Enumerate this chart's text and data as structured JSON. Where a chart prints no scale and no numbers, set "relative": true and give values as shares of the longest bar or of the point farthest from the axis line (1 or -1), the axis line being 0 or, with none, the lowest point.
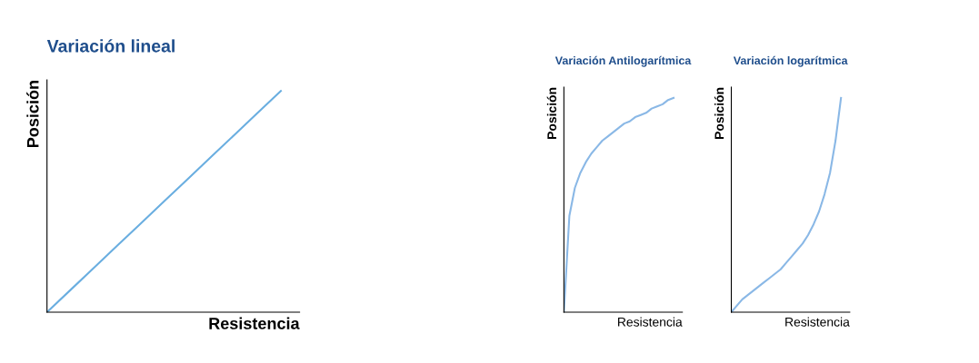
{
  "chart_data": [
    {
      "type": "line",
      "title": "Variación lineal",
      "xlabel": "Resistencia",
      "ylabel": "Posición",
      "relative": true,
      "categories": [
        null,
        null,
        null,
        null,
        null,
        null,
        null,
        null,
        null,
        null,
        null
      ],
      "series": [
        {
          "color": "#6aaee0",
          "values": [
            0,
            0.1,
            0.2,
            0.3,
            0.4,
            0.5,
            0.6,
            0.7,
            0.8,
            0.9,
            1
          ]
        }
      ]
    },
    {
      "type": "line",
      "title": "Variación Antilogarítmica",
      "xlabel": "Resistencia",
      "ylabel": "Posición",
      "relative": true,
      "categories": [
        null,
        null,
        null,
        null,
        null,
        null,
        null,
        null,
        null,
        null,
        null,
        null,
        null,
        null,
        null,
        null,
        null,
        null,
        null,
        null,
        null
      ],
      "series": [
        {
          "color": "#8ab8e6",
          "values": [
            0,
            0.45,
            0.58,
            0.65,
            0.7,
            0.74,
            0.77,
            0.8,
            0.82,
            0.84,
            0.86,
            0.88,
            0.89,
            0.91,
            0.92,
            0.93,
            0.95,
            0.96,
            0.97,
            0.99,
            1
          ]
        }
      ]
    },
    {
      "type": "line",
      "title": "Variación logarítmica",
      "xlabel": "Resistencia",
      "ylabel": "Posición",
      "relative": true,
      "categories": [
        null,
        null,
        null,
        null,
        null,
        null,
        null,
        null,
        null,
        null,
        null,
        null,
        null,
        null,
        null,
        null,
        null,
        null,
        null,
        null,
        null
      ],
      "series": [
        {
          "color": "#8ab8e6",
          "values": [
            0,
            0.03,
            0.06,
            0.08,
            0.1,
            0.12,
            0.14,
            0.16,
            0.18,
            0.2,
            0.23,
            0.26,
            0.29,
            0.32,
            0.36,
            0.41,
            0.47,
            0.55,
            0.65,
            0.8,
            1
          ]
        }
      ]
    }
  ]
}
